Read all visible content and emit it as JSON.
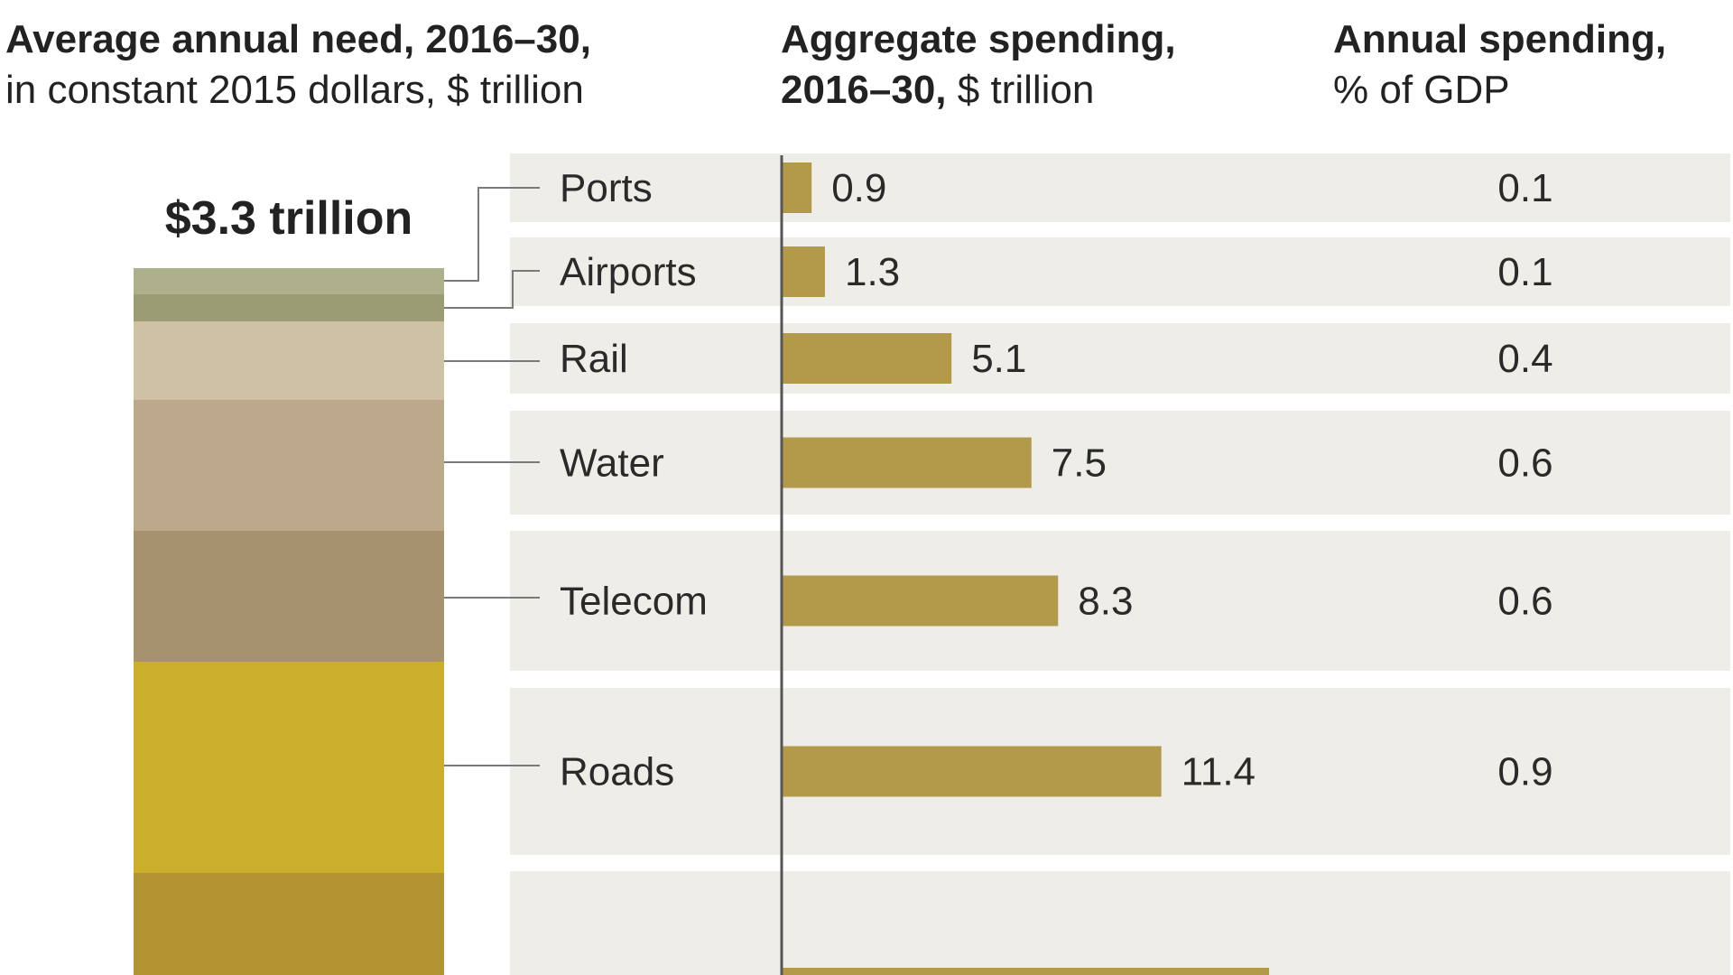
{
  "header": {
    "need_bold": "Average annual need, 2016–30,",
    "need_rest": "in constant 2015 dollars, $ trillion",
    "agg_bold_1": "Aggregate spending,",
    "agg_bold_2": "2016–30,",
    "agg_rest": " $ trillion",
    "ann_bold": "Annual spending,",
    "ann_rest": "% of GDP"
  },
  "total_label": "$3.3 trillion",
  "colors": {
    "bar": "#b39a4a",
    "row_bg": "#efede7",
    "axis": "#555555",
    "leader": "#7a7a7a"
  },
  "chart_data": {
    "type": "bar",
    "orientation": "horizontal",
    "categories": [
      "Ports",
      "Airports",
      "Rail",
      "Water",
      "Telecom",
      "Roads"
    ],
    "series": [
      {
        "name": "Aggregate spending, 2016–30, $ trillion",
        "values": [
          0.9,
          1.3,
          5.1,
          7.5,
          8.3,
          11.4
        ]
      },
      {
        "name": "Annual spending, % of GDP",
        "values": [
          0.1,
          0.1,
          0.4,
          0.6,
          0.6,
          0.9
        ]
      }
    ],
    "value_labels": [
      "0.9",
      "1.3",
      "5.1",
      "7.5",
      "8.3",
      "11.4"
    ],
    "gdp_labels": [
      "0.1",
      "0.1",
      "0.4",
      "0.6",
      "0.6",
      "0.9"
    ],
    "stack": {
      "total": 3.3,
      "segments": [
        {
          "category": "Ports",
          "color": "#aeaf8b"
        },
        {
          "category": "Airports",
          "color": "#9c9c74"
        },
        {
          "category": "Rail",
          "color": "#cfc1a6"
        },
        {
          "category": "Water",
          "color": "#bca88a"
        },
        {
          "category": "Telecom",
          "color": "#a6926f"
        },
        {
          "category": "Roads",
          "color": "#cbae2b"
        },
        {
          "category": "",
          "color": "#b39332"
        }
      ]
    }
  }
}
